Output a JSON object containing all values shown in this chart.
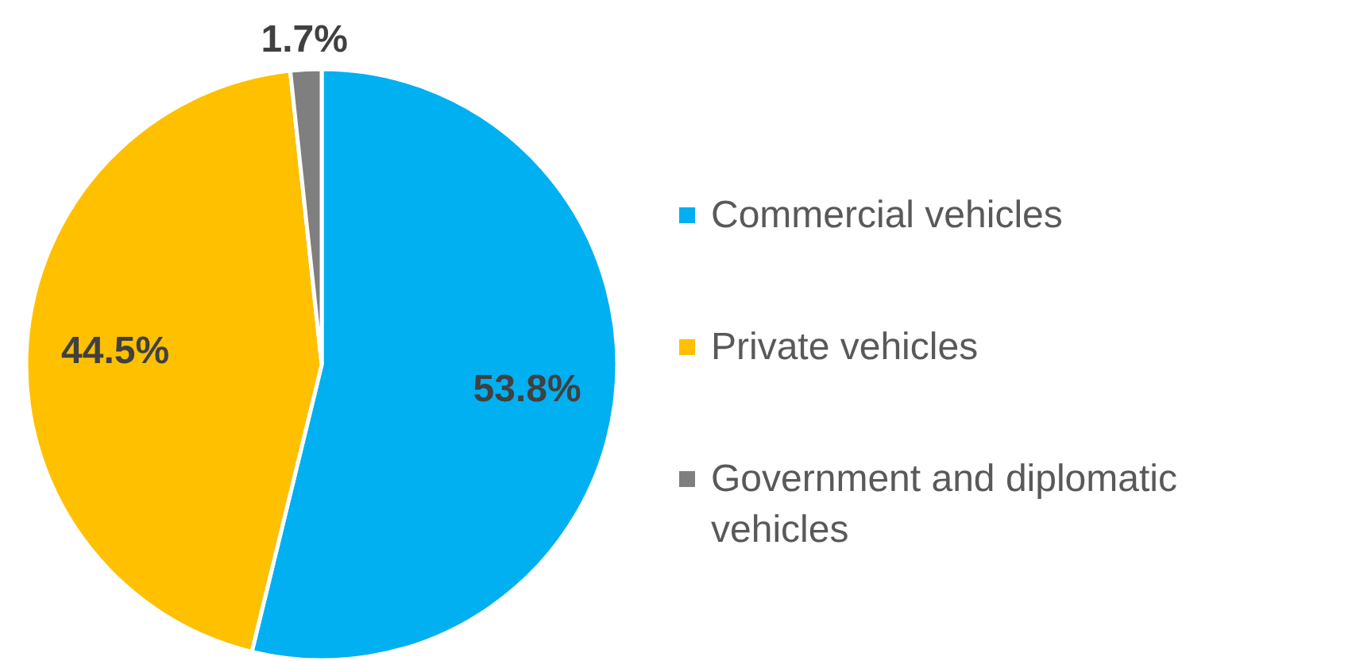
{
  "chart_data": {
    "type": "pie",
    "categories": [
      "Commercial vehicles",
      "Private vehicles",
      "Government and diplomatic vehicles"
    ],
    "values": [
      53.8,
      44.5,
      1.7
    ],
    "colors": [
      "#00b0f0",
      "#ffc000",
      "#7f7f7f"
    ],
    "value_labels": [
      "53.8%",
      "44.5%",
      "1.7%"
    ],
    "legend": "right"
  }
}
